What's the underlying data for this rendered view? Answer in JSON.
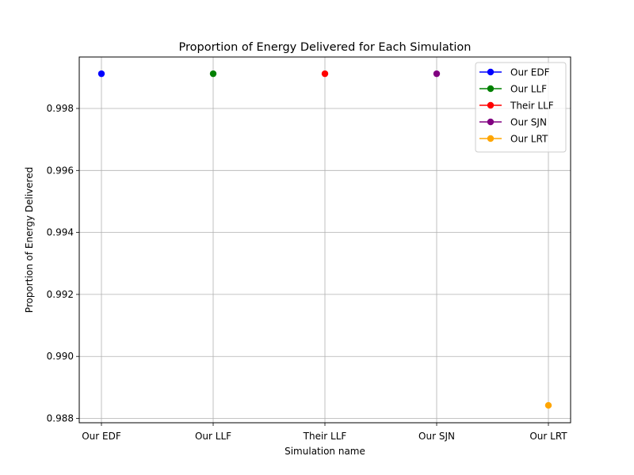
{
  "chart_data": {
    "type": "scatter",
    "title": "Proportion of Energy Delivered for Each Simulation",
    "xlabel": "Simulation name",
    "ylabel": "Proportion of Energy Delivered",
    "categories": [
      "Our EDF",
      "Our LLF",
      "Their LLF",
      "Our SJN",
      "Our LRT"
    ],
    "series": [
      {
        "name": "Our EDF",
        "category": "Our EDF",
        "value": 0.99912,
        "color": "#0000ff"
      },
      {
        "name": "Our LLF",
        "category": "Our LLF",
        "value": 0.99912,
        "color": "#008000"
      },
      {
        "name": "Their LLF",
        "category": "Their LLF",
        "value": 0.99912,
        "color": "#ff0000"
      },
      {
        "name": "Our SJN",
        "category": "Our SJN",
        "value": 0.99912,
        "color": "#800080"
      },
      {
        "name": "Our LRT",
        "category": "Our LRT",
        "value": 0.98842,
        "color": "#ffa500"
      }
    ],
    "y_ticks": [
      "0.988",
      "0.990",
      "0.992",
      "0.994",
      "0.996",
      "0.998"
    ],
    "ylim": [
      0.98786,
      0.99966
    ],
    "grid": true,
    "legend_position": "top-right"
  }
}
